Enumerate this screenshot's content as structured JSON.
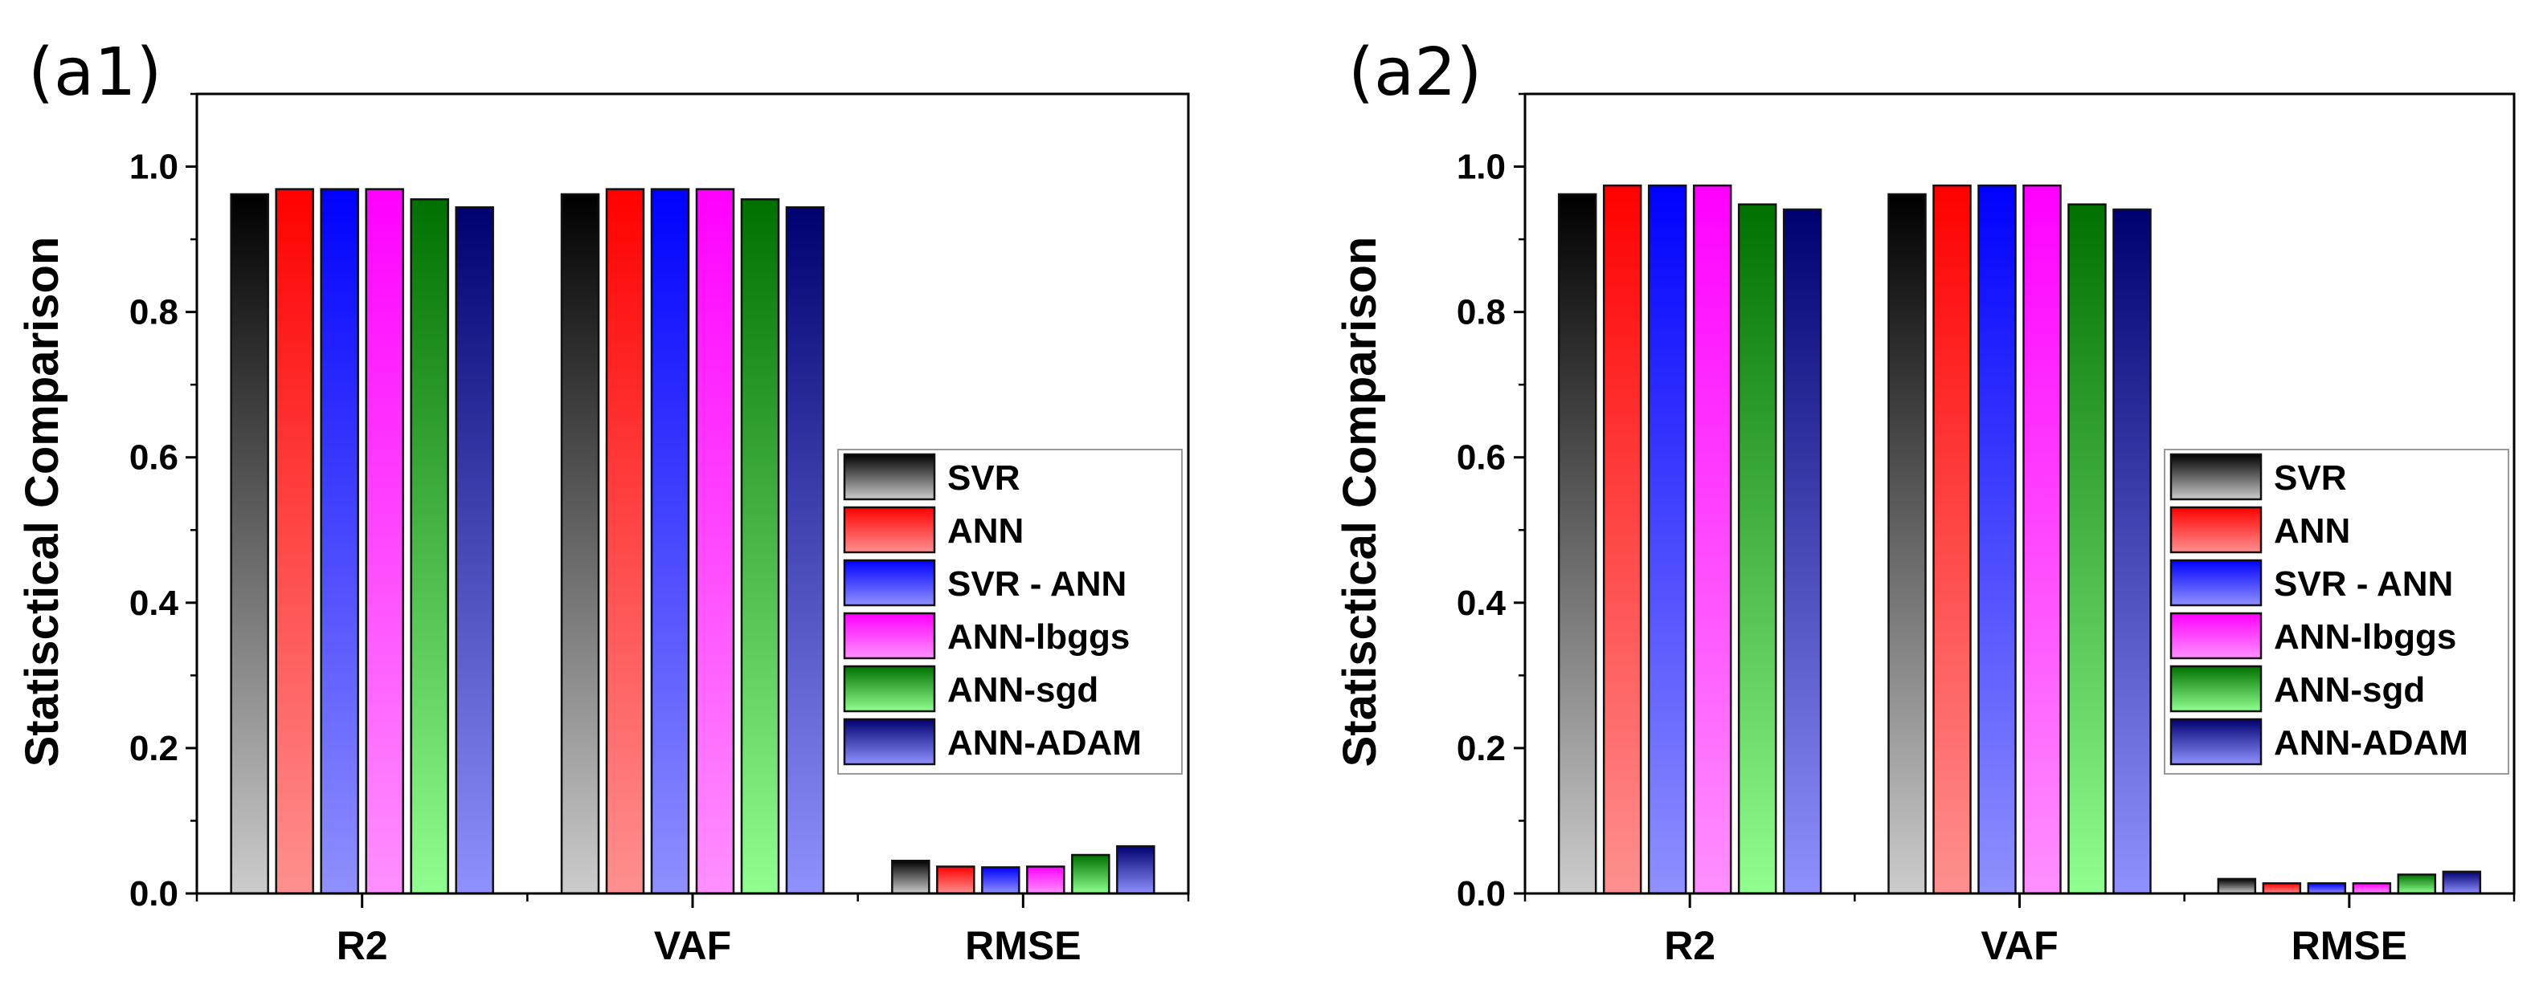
{
  "chart_data": [
    {
      "type": "bar",
      "panel_label": "(a1)",
      "title": "",
      "xlabel": "",
      "ylabel": "Statisctical Comparison",
      "ylim": [
        0,
        1.1
      ],
      "yticks": [
        "0.0",
        "0.2",
        "0.4",
        "0.6",
        "0.8",
        "1.0"
      ],
      "categories": [
        "R2",
        "VAF",
        "RMSE"
      ],
      "legend_position": "center-right",
      "series": [
        {
          "name": "SVR",
          "color_top": "#000000",
          "color_bottom": "#cccccc",
          "values": [
            0.962,
            0.962,
            0.045
          ]
        },
        {
          "name": "ANN",
          "color_top": "#ff0000",
          "color_bottom": "#ff9090",
          "values": [
            0.969,
            0.969,
            0.037
          ]
        },
        {
          "name": "SVR - ANN",
          "color_top": "#0000ff",
          "color_bottom": "#9090ff",
          "values": [
            0.969,
            0.969,
            0.036
          ]
        },
        {
          "name": "ANN-lbggs",
          "color_top": "#ff00ff",
          "color_bottom": "#ff90ff",
          "values": [
            0.969,
            0.969,
            0.037
          ]
        },
        {
          "name": "ANN-sgd",
          "color_top": "#007000",
          "color_bottom": "#90ff90",
          "values": [
            0.955,
            0.955,
            0.053
          ]
        },
        {
          "name": "ANN-ADAM",
          "color_top": "#000070",
          "color_bottom": "#9090ff",
          "values": [
            0.944,
            0.944,
            0.065
          ]
        }
      ]
    },
    {
      "type": "bar",
      "panel_label": "(a2)",
      "title": "",
      "xlabel": "",
      "ylabel": "Statisctical Comparison",
      "ylim": [
        0,
        1.1
      ],
      "yticks": [
        "0.0",
        "0.2",
        "0.4",
        "0.6",
        "0.8",
        "1.0"
      ],
      "categories": [
        "R2",
        "VAF",
        "RMSE"
      ],
      "legend_position": "center-right",
      "series": [
        {
          "name": "SVR",
          "color_top": "#000000",
          "color_bottom": "#cccccc",
          "values": [
            0.962,
            0.962,
            0.02
          ]
        },
        {
          "name": "ANN",
          "color_top": "#ff0000",
          "color_bottom": "#ff9090",
          "values": [
            0.974,
            0.974,
            0.014
          ]
        },
        {
          "name": "SVR - ANN",
          "color_top": "#0000ff",
          "color_bottom": "#9090ff",
          "values": [
            0.974,
            0.974,
            0.014
          ]
        },
        {
          "name": "ANN-lbggs",
          "color_top": "#ff00ff",
          "color_bottom": "#ff90ff",
          "values": [
            0.974,
            0.974,
            0.014
          ]
        },
        {
          "name": "ANN-sgd",
          "color_top": "#007000",
          "color_bottom": "#90ff90",
          "values": [
            0.948,
            0.948,
            0.026
          ]
        },
        {
          "name": "ANN-ADAM",
          "color_top": "#000070",
          "color_bottom": "#9090ff",
          "values": [
            0.941,
            0.941,
            0.03
          ]
        }
      ]
    }
  ]
}
